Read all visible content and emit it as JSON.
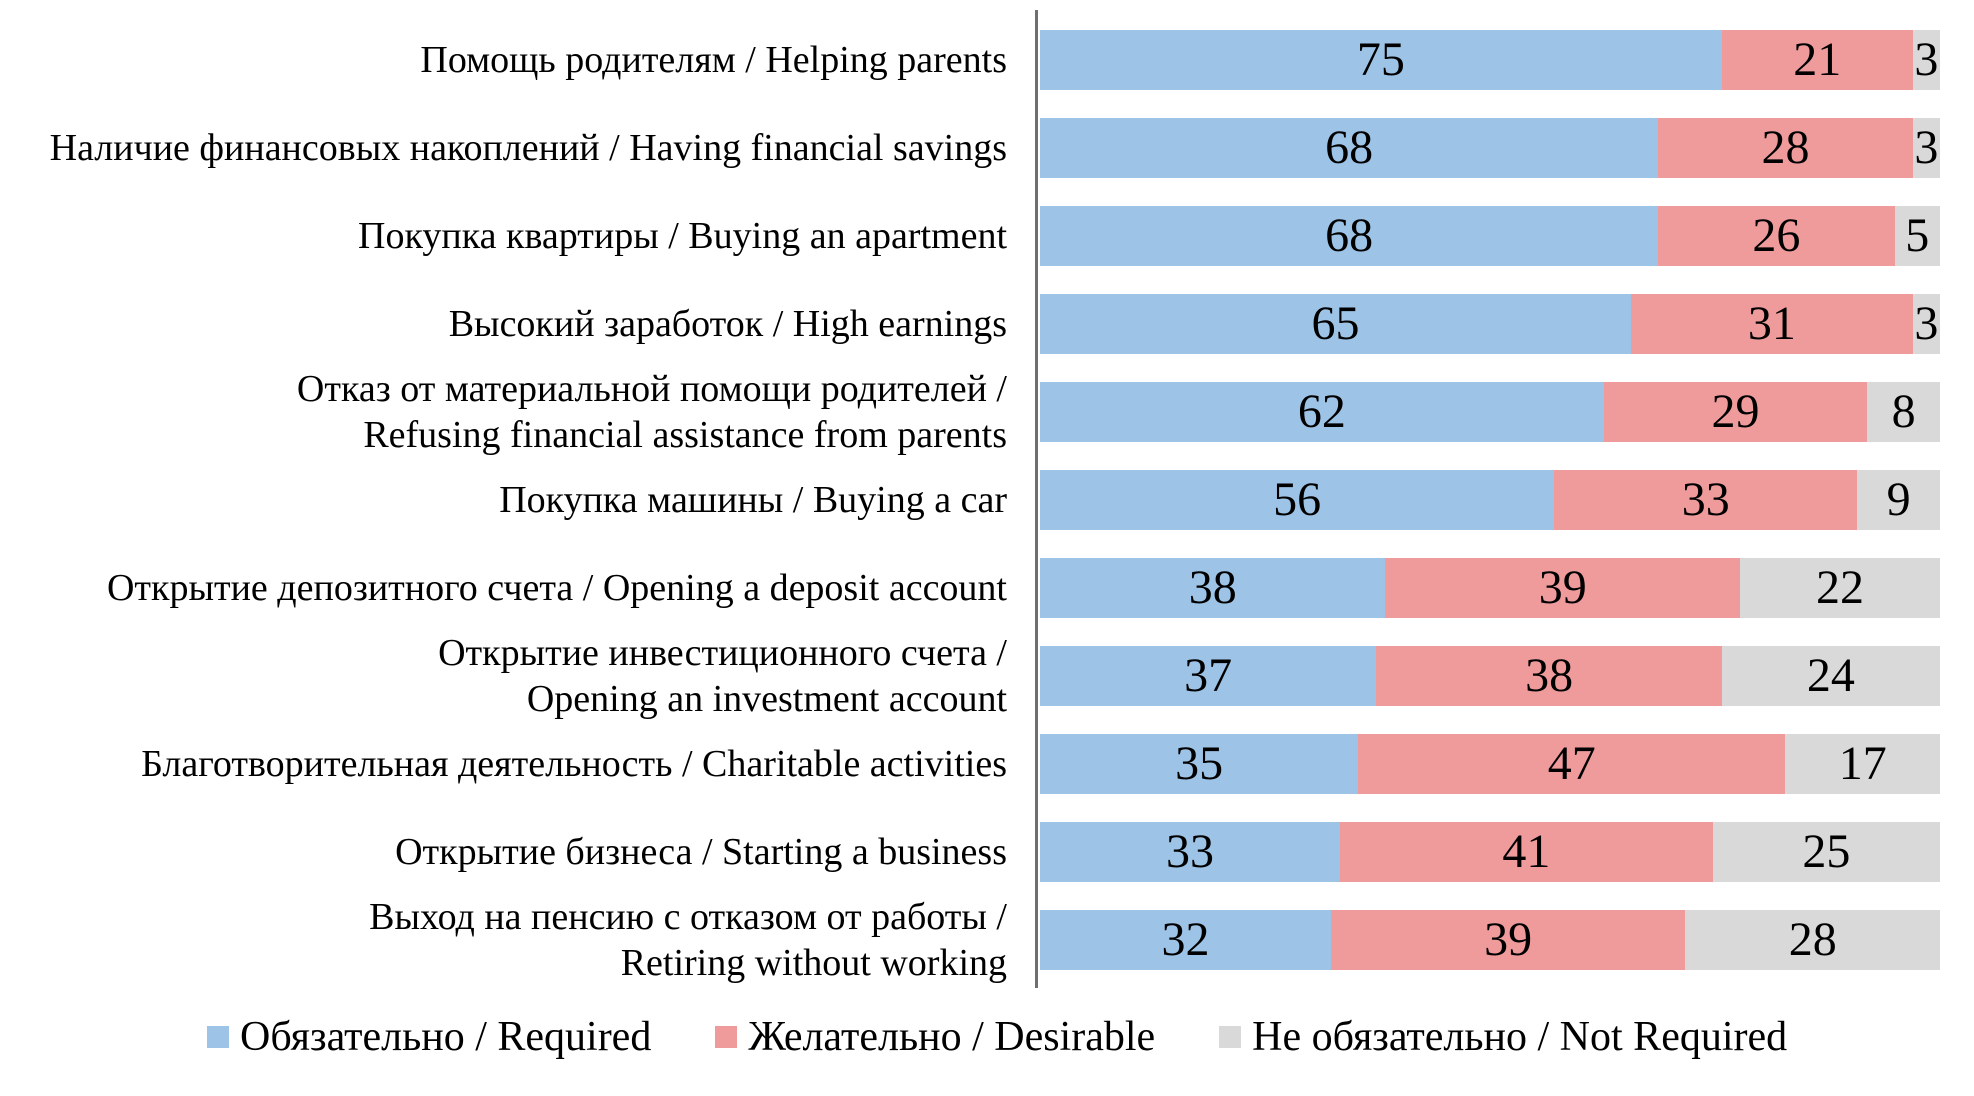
{
  "chart_data": {
    "type": "bar",
    "orientation": "horizontal",
    "stacked": "percent",
    "title": "",
    "xlabel": "",
    "ylabel": "",
    "xlim": [
      0,
      100
    ],
    "grid": false,
    "legend_position": "bottom",
    "axis_line_color": "#6F6F6F",
    "value_label_color": "#000000",
    "categories": [
      "Помощь родителям / Helping parents",
      "Наличие финансовых накоплений / Having financial savings",
      "Покупка квартиры / Buying an apartment",
      "Высокий заработок / High earnings",
      "Отказ от материальной помощи родителей /\nRefusing financial assistance from parents",
      "Покупка машины /  Buying a car",
      "Открытие депозитного счета /  Opening a deposit account",
      "Открытие инвестиционного счета /\nOpening an investment account",
      "Благотворительная деятельность / Charitable activities",
      "Открытие бизнеса /  Starting a business",
      "Выход на пенсию с отказом от работы /\nRetiring without working"
    ],
    "series": [
      {
        "name": "Обязательно / Required",
        "color": "#9DC3E6",
        "values": [
          75,
          68,
          68,
          65,
          62,
          56,
          38,
          37,
          35,
          33,
          32
        ]
      },
      {
        "name": "Желательно / Desirable",
        "color": "#F09B9B",
        "values": [
          21,
          28,
          26,
          31,
          29,
          33,
          39,
          38,
          47,
          41,
          39
        ]
      },
      {
        "name": "Не обязательно / Not Required",
        "color": "#D9D9D9",
        "values": [
          3,
          3,
          5,
          3,
          8,
          9,
          22,
          24,
          17,
          25,
          28
        ]
      }
    ]
  }
}
